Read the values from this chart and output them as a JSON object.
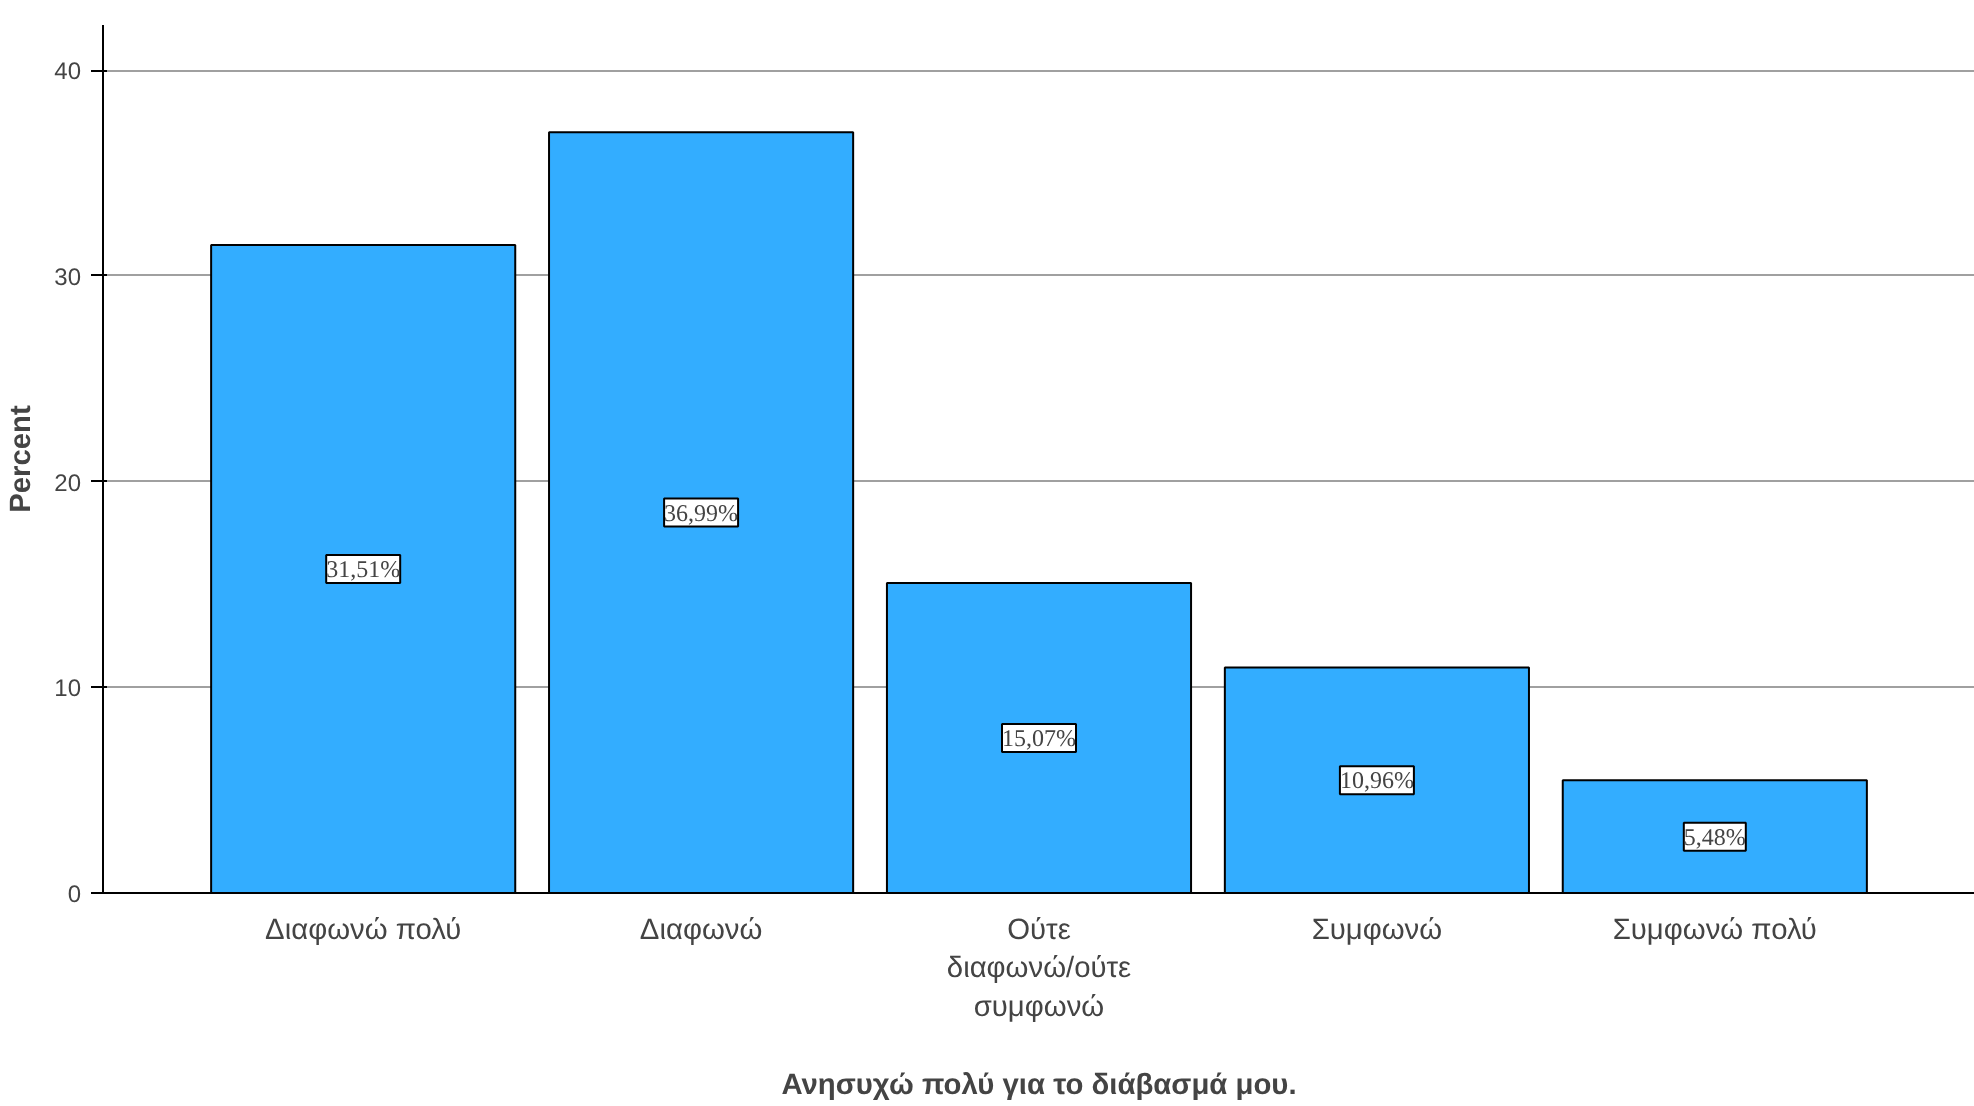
{
  "chart_data": {
    "type": "bar",
    "xlabel": "Ανησυχώ πολύ για το διάβασμά μου.",
    "ylabel": "Percent",
    "categories": [
      "Διαφωνώ πολύ",
      "Διαφωνώ",
      "Ούτε διαφωνώ/ούτε συμφωνώ",
      "Συμφωνώ",
      "Συμφωνώ πολύ"
    ],
    "values": [
      31.51,
      36.99,
      15.07,
      10.96,
      5.48
    ],
    "value_labels": [
      "31,51%",
      "36,99%",
      "15,07%",
      "10,96%",
      "5,48%"
    ],
    "color": "#33adff",
    "ylim": [
      0,
      42.2
    ],
    "yticks": [
      0,
      10,
      20,
      30,
      40
    ],
    "grid": "y"
  }
}
